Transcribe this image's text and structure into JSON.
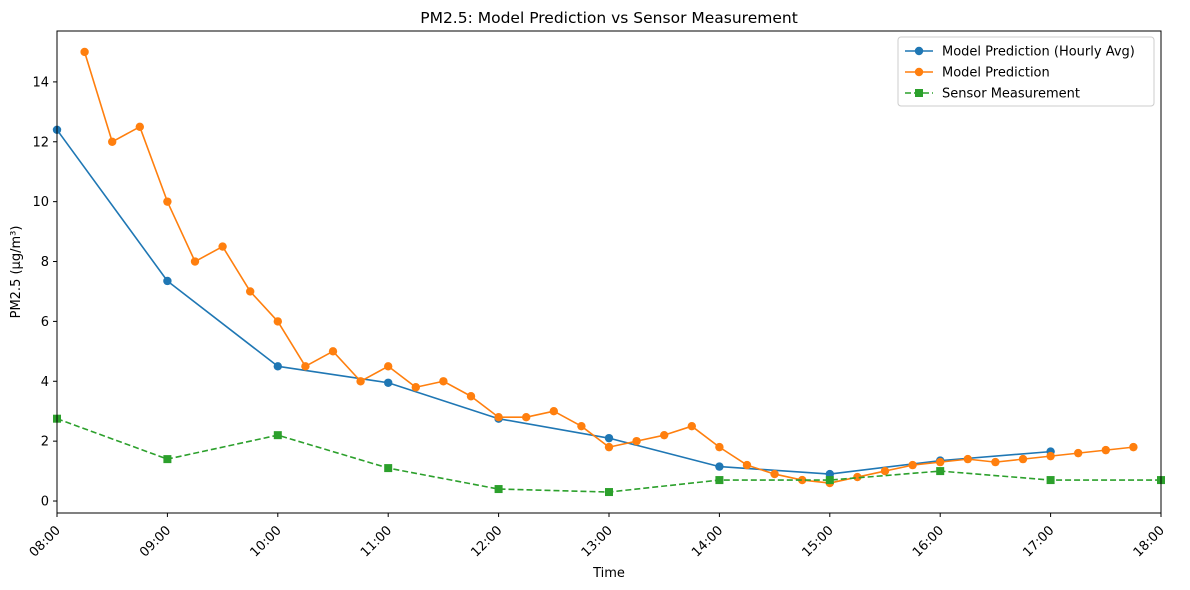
{
  "chart_data": {
    "type": "line",
    "title": "PM2.5: Model Prediction vs Sensor Measurement",
    "xlabel": "Time",
    "ylabel": "PM2.5 (µg/m³)",
    "xlim": [
      "08:00",
      "18:00"
    ],
    "ylim": [
      -0.4,
      15.7
    ],
    "x_ticks": [
      "08:00",
      "09:00",
      "10:00",
      "11:00",
      "12:00",
      "13:00",
      "14:00",
      "15:00",
      "16:00",
      "17:00",
      "18:00"
    ],
    "y_ticks": [
      0,
      2,
      4,
      6,
      8,
      10,
      12,
      14
    ],
    "grid": false,
    "legend_position": "top-right",
    "series": [
      {
        "name": "Model Prediction (Hourly Avg)",
        "color": "#1f77b4",
        "line_style": "solid",
        "marker": "circle",
        "x": [
          "08:00",
          "09:00",
          "10:00",
          "11:00",
          "12:00",
          "13:00",
          "14:00",
          "15:00",
          "16:00",
          "17:00"
        ],
        "y": [
          12.4,
          7.35,
          4.5,
          3.95,
          2.75,
          2.1,
          1.15,
          0.9,
          1.35,
          1.65
        ]
      },
      {
        "name": "Model Prediction",
        "color": "#ff7f0e",
        "line_style": "solid",
        "marker": "circle",
        "x": [
          "08:15",
          "08:30",
          "08:45",
          "09:00",
          "09:15",
          "09:30",
          "09:45",
          "10:00",
          "10:15",
          "10:30",
          "10:45",
          "11:00",
          "11:15",
          "11:30",
          "11:45",
          "12:00",
          "12:15",
          "12:30",
          "12:45",
          "13:00",
          "13:15",
          "13:30",
          "13:45",
          "14:00",
          "14:15",
          "14:30",
          "14:45",
          "15:00",
          "15:15",
          "15:30",
          "15:45",
          "16:00",
          "16:15",
          "16:30",
          "16:45",
          "17:00",
          "17:15",
          "17:30",
          "17:45"
        ],
        "y": [
          15.0,
          12.0,
          12.5,
          10.0,
          8.0,
          8.5,
          7.0,
          6.0,
          4.5,
          5.0,
          4.0,
          4.5,
          3.8,
          4.0,
          3.5,
          2.8,
          2.8,
          3.0,
          2.5,
          1.8,
          2.0,
          2.2,
          2.5,
          1.8,
          1.2,
          0.9,
          0.7,
          0.6,
          0.8,
          1.0,
          1.2,
          1.3,
          1.4,
          1.3,
          1.4,
          1.5,
          1.6,
          1.7,
          1.8
        ]
      },
      {
        "name": "Sensor Measurement",
        "color": "#2ca02c",
        "line_style": "dashed",
        "marker": "square",
        "x": [
          "08:00",
          "09:00",
          "10:00",
          "11:00",
          "12:00",
          "13:00",
          "14:00",
          "15:00",
          "16:00",
          "17:00",
          "18:00"
        ],
        "y": [
          2.75,
          1.4,
          2.2,
          1.1,
          0.4,
          0.3,
          0.7,
          0.7,
          1.0,
          0.7,
          0.7
        ]
      }
    ]
  }
}
